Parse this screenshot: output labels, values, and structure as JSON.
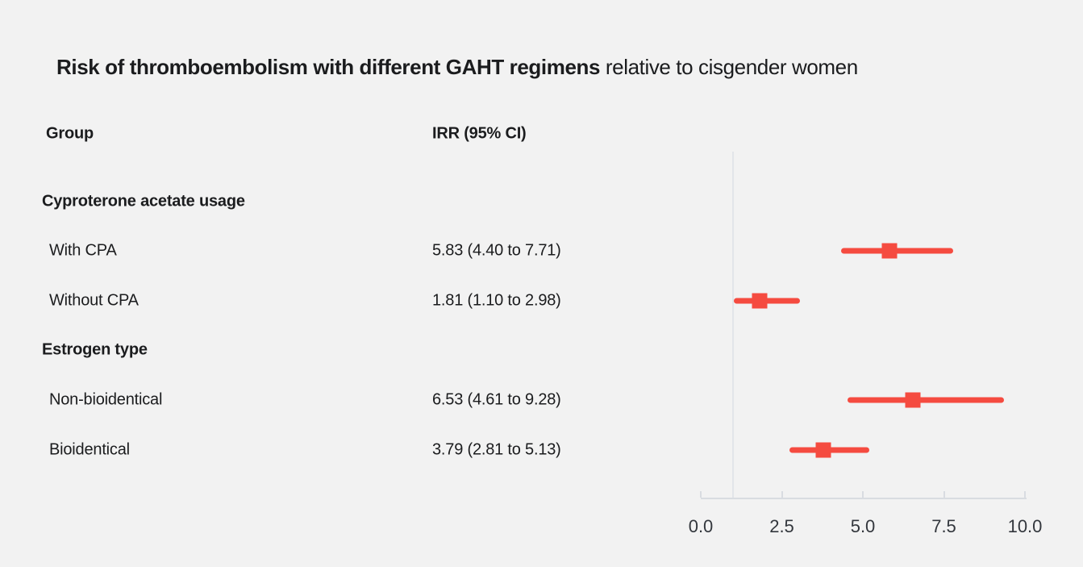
{
  "title": {
    "main": "Risk of thromboembolism with different GAHT regimens",
    "suffix": " relative to cisgender women"
  },
  "columns": {
    "group": "Group",
    "irr": "IRR (95% CI)"
  },
  "colors": {
    "background": "#f2f2f2",
    "marker": "#f54b40",
    "axis": "#d9dce1",
    "reference_line": "#e2e5e9",
    "text": "#1b1c1e"
  },
  "chart_data": {
    "type": "forest",
    "title": "Risk of thromboembolism with different GAHT regimens relative to cisgender women",
    "xlabel": "",
    "ylabel": "",
    "xlim": [
      0,
      10
    ],
    "x_tick_values": [
      0,
      2.5,
      5,
      7.5,
      10
    ],
    "x_tick_labels": [
      "0.0",
      "2.5",
      "5.0",
      "7.5",
      "10.0"
    ],
    "reference_line_x": 1,
    "grid": false,
    "legend": false,
    "groups": [
      {
        "label": "Cyproterone acetate usage",
        "rows": [
          {
            "label": "With CPA",
            "irr_text": "5.83 (4.40 to 7.71)",
            "irr": 5.83,
            "ci_low": 4.4,
            "ci_high": 7.71
          },
          {
            "label": "Without CPA",
            "irr_text": "1.81 (1.10 to 2.98)",
            "irr": 1.81,
            "ci_low": 1.1,
            "ci_high": 2.98
          }
        ]
      },
      {
        "label": "Estrogen type",
        "rows": [
          {
            "label": "Non-bioidentical",
            "irr_text": "6.53 (4.61 to 9.28)",
            "irr": 6.53,
            "ci_low": 4.61,
            "ci_high": 9.28
          },
          {
            "label": "Bioidentical",
            "irr_text": "3.79 (2.81 to 5.13)",
            "irr": 3.79,
            "ci_low": 2.81,
            "ci_high": 5.13
          }
        ]
      }
    ]
  }
}
